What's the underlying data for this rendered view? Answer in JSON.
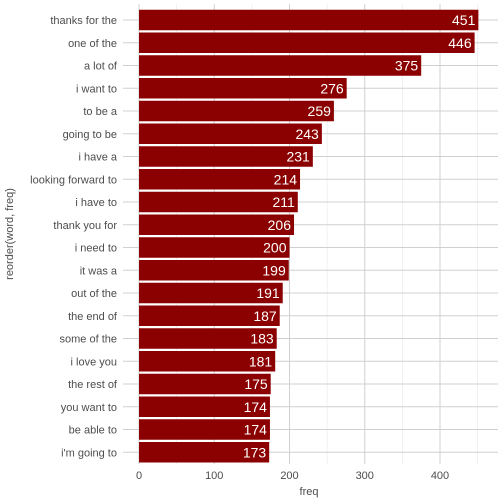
{
  "chart_data": {
    "type": "bar",
    "orientation": "horizontal",
    "title": "",
    "xlabel": "freq",
    "ylabel": "reorder(word, freq)",
    "xlim": [
      0,
      450
    ],
    "x_ticks": [
      "0",
      "100",
      "200",
      "300",
      "400"
    ],
    "grid": true,
    "bar_color": "#8B0000",
    "label_color": "#ffffff",
    "categories": [
      "thanks for the",
      "one of the",
      "a lot of",
      "i want to",
      "to be a",
      "going to be",
      "i have a",
      "looking forward to",
      "i have to",
      "thank you for",
      "i need to",
      "it was a",
      "out of the",
      "the end of",
      "some of the",
      "i love you",
      "the rest of",
      "you want to",
      "be able to",
      "i'm going to"
    ],
    "values": [
      451,
      446,
      375,
      276,
      259,
      243,
      231,
      214,
      211,
      206,
      200,
      199,
      191,
      187,
      183,
      181,
      175,
      174,
      174,
      173
    ]
  }
}
